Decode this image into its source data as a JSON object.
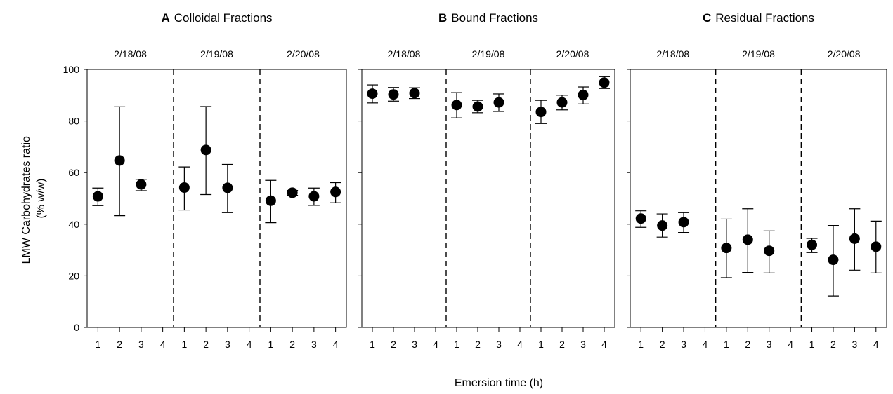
{
  "chart_data": [
    {
      "type": "scatter",
      "panel_letter": "A",
      "title": "Colloidal Fractions",
      "groups": [
        {
          "date": "2/18/08",
          "x": [
            "1",
            "2",
            "3",
            "4"
          ],
          "y": [
            50.8,
            64.7,
            55.4,
            null
          ],
          "err_low": [
            47.2,
            43.3,
            53.0,
            null
          ],
          "err_high": [
            54.0,
            85.5,
            57.4,
            null
          ]
        },
        {
          "date": "2/19/08",
          "x": [
            "1",
            "2",
            "3",
            "4"
          ],
          "y": [
            54.2,
            68.8,
            54.1,
            null
          ],
          "err_low": [
            45.5,
            51.5,
            44.5,
            null
          ],
          "err_high": [
            62.2,
            85.6,
            63.2,
            null
          ]
        },
        {
          "date": "2/20/08",
          "x": [
            "1",
            "2",
            "3",
            "4"
          ],
          "y": [
            49.1,
            52.2,
            50.8,
            52.5
          ],
          "err_low": [
            40.6,
            51.2,
            47.3,
            48.3
          ],
          "err_high": [
            57.0,
            53.1,
            54.0,
            56.1
          ]
        }
      ]
    },
    {
      "type": "scatter",
      "panel_letter": "B",
      "title": "Bound Fractions",
      "groups": [
        {
          "date": "2/18/08",
          "x": [
            "1",
            "2",
            "3",
            "4"
          ],
          "y": [
            90.6,
            90.3,
            90.8,
            null
          ],
          "err_low": [
            87.0,
            87.7,
            88.7,
            null
          ],
          "err_high": [
            94.0,
            93.0,
            92.9,
            null
          ]
        },
        {
          "date": "2/19/08",
          "x": [
            "1",
            "2",
            "3",
            "4"
          ],
          "y": [
            86.2,
            85.6,
            87.2,
            null
          ],
          "err_low": [
            81.2,
            83.2,
            83.7,
            null
          ],
          "err_high": [
            91.0,
            88.0,
            90.5,
            null
          ]
        },
        {
          "date": "2/20/08",
          "x": [
            "1",
            "2",
            "3",
            "4"
          ],
          "y": [
            83.5,
            87.2,
            90.1,
            94.9
          ],
          "err_low": [
            79.0,
            84.3,
            86.6,
            92.6
          ],
          "err_high": [
            88.0,
            90.0,
            93.2,
            97.2
          ]
        }
      ]
    },
    {
      "type": "scatter",
      "panel_letter": "C",
      "title": "Residual Fractions",
      "groups": [
        {
          "date": "2/18/08",
          "x": [
            "1",
            "2",
            "3",
            "4"
          ],
          "y": [
            42.2,
            39.5,
            40.8,
            null
          ],
          "err_low": [
            38.8,
            35.0,
            36.8,
            null
          ],
          "err_high": [
            45.2,
            44.0,
            44.5,
            null
          ]
        },
        {
          "date": "2/19/08",
          "x": [
            "1",
            "2",
            "3",
            "4"
          ],
          "y": [
            30.8,
            34.0,
            29.7,
            null
          ],
          "err_low": [
            19.3,
            21.3,
            21.1,
            null
          ],
          "err_high": [
            42.0,
            46.0,
            37.4,
            null
          ]
        },
        {
          "date": "2/20/08",
          "x": [
            "1",
            "2",
            "3",
            "4"
          ],
          "y": [
            32.0,
            26.2,
            34.4,
            31.3
          ],
          "err_low": [
            29.0,
            12.2,
            22.2,
            21.1
          ],
          "err_high": [
            34.5,
            39.5,
            46.0,
            41.2
          ]
        }
      ]
    }
  ],
  "axes": {
    "ylabel_line1": "LMW Carbohydrates ratio",
    "ylabel_line2": "(% w/w)",
    "xlabel": "Emersion time (h)",
    "ylim": [
      0,
      100
    ],
    "y_ticks": [
      0,
      20,
      40,
      60,
      80,
      100
    ],
    "y_tick_labels_shown_on_first_panel_only": true,
    "grid": false,
    "legend": "none"
  },
  "style": {
    "marker_color": "#000000",
    "divider_line_style": "dashed"
  }
}
